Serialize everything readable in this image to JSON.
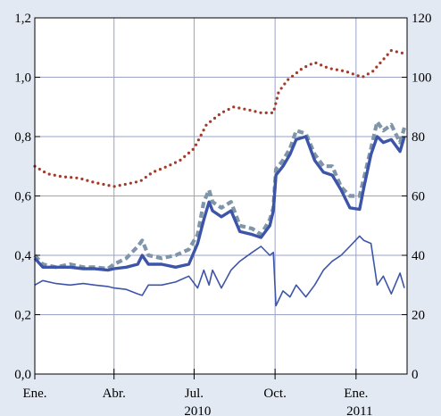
{
  "chart_data": {
    "type": "line",
    "title": "",
    "x_range": [
      "2010-01-01",
      "2011-02-28"
    ],
    "x_ticks": [
      {
        "date": "2010-01-01",
        "label": "Ene.",
        "year": ""
      },
      {
        "date": "2010-04-01",
        "label": "Abr.",
        "year": ""
      },
      {
        "date": "2010-07-01",
        "label": "Jul.",
        "year": "2010"
      },
      {
        "date": "2010-10-01",
        "label": "Oct.",
        "year": ""
      },
      {
        "date": "2011-01-01",
        "label": "Ene.",
        "year": "2011"
      }
    ],
    "y_left": {
      "range": [
        0,
        1.2
      ],
      "ticks": [
        0,
        0.2,
        0.4,
        0.6,
        0.8,
        1.0,
        1.2
      ],
      "tick_labels": [
        "0,0",
        "0,2",
        "0,4",
        "0,6",
        "0,8",
        "1,0",
        "1,2"
      ]
    },
    "y_right": {
      "range": [
        0,
        120
      ],
      "ticks": [
        0,
        20,
        40,
        60,
        80,
        100,
        120
      ],
      "tick_labels": [
        "0",
        "20",
        "40",
        "60",
        "80",
        "100",
        "120"
      ]
    },
    "grid": true,
    "legend": "none",
    "series": [
      {
        "axis": "right",
        "style": "dotted",
        "color": "#a33a2a",
        "points": [
          [
            "2010-01-01",
            70
          ],
          [
            "2010-01-15",
            67.5
          ],
          [
            "2010-02-01",
            66.5
          ],
          [
            "2010-02-20",
            66
          ],
          [
            "2010-03-10",
            64.5
          ],
          [
            "2010-04-01",
            63.2
          ],
          [
            "2010-04-15",
            64
          ],
          [
            "2010-05-01",
            65
          ],
          [
            "2010-05-15",
            68
          ],
          [
            "2010-06-01",
            70
          ],
          [
            "2010-06-15",
            72
          ],
          [
            "2010-07-01",
            76
          ],
          [
            "2010-07-15",
            84
          ],
          [
            "2010-08-01",
            88
          ],
          [
            "2010-08-15",
            90
          ],
          [
            "2010-09-01",
            89
          ],
          [
            "2010-09-15",
            88
          ],
          [
            "2010-09-29",
            88
          ],
          [
            "2010-10-05",
            95
          ],
          [
            "2010-10-15",
            99
          ],
          [
            "2010-11-01",
            103
          ],
          [
            "2010-11-15",
            105
          ],
          [
            "2010-12-01",
            103
          ],
          [
            "2010-12-20",
            102
          ],
          [
            "2011-01-08",
            100
          ],
          [
            "2011-01-20",
            102
          ],
          [
            "2011-02-01",
            106
          ],
          [
            "2011-02-10",
            109
          ],
          [
            "2011-02-25",
            108
          ]
        ]
      },
      {
        "axis": "left",
        "style": "dashed",
        "color": "#7f95a8",
        "points": [
          [
            "2010-01-01",
            0.4
          ],
          [
            "2010-01-10",
            0.37
          ],
          [
            "2010-01-25",
            0.36
          ],
          [
            "2010-02-10",
            0.37
          ],
          [
            "2010-02-25",
            0.36
          ],
          [
            "2010-03-10",
            0.36
          ],
          [
            "2010-03-25",
            0.355
          ],
          [
            "2010-04-01",
            0.37
          ],
          [
            "2010-04-15",
            0.39
          ],
          [
            "2010-04-28",
            0.43
          ],
          [
            "2010-05-03",
            0.45
          ],
          [
            "2010-05-10",
            0.4
          ],
          [
            "2010-05-25",
            0.39
          ],
          [
            "2010-06-10",
            0.4
          ],
          [
            "2010-06-25",
            0.42
          ],
          [
            "2010-07-05",
            0.47
          ],
          [
            "2010-07-12",
            0.58
          ],
          [
            "2010-07-18",
            0.62
          ],
          [
            "2010-07-22",
            0.58
          ],
          [
            "2010-08-01",
            0.56
          ],
          [
            "2010-08-12",
            0.58
          ],
          [
            "2010-08-22",
            0.5
          ],
          [
            "2010-09-05",
            0.49
          ],
          [
            "2010-09-15",
            0.47
          ],
          [
            "2010-09-25",
            0.52
          ],
          [
            "2010-09-29",
            0.56
          ],
          [
            "2010-10-02",
            0.69
          ],
          [
            "2010-10-10",
            0.72
          ],
          [
            "2010-10-18",
            0.76
          ],
          [
            "2010-10-25",
            0.82
          ],
          [
            "2010-11-05",
            0.81
          ],
          [
            "2010-11-15",
            0.74
          ],
          [
            "2010-11-25",
            0.7
          ],
          [
            "2010-12-05",
            0.7
          ],
          [
            "2010-12-15",
            0.63
          ],
          [
            "2010-12-25",
            0.6
          ],
          [
            "2011-01-05",
            0.6
          ],
          [
            "2011-01-10",
            0.66
          ],
          [
            "2011-01-18",
            0.76
          ],
          [
            "2011-01-25",
            0.85
          ],
          [
            "2011-02-01",
            0.82
          ],
          [
            "2011-02-10",
            0.84
          ],
          [
            "2011-02-20",
            0.78
          ],
          [
            "2011-02-25",
            0.83
          ]
        ]
      },
      {
        "axis": "left",
        "style": "solid-thick",
        "color": "#3d55a8",
        "points": [
          [
            "2010-01-01",
            0.39
          ],
          [
            "2010-01-10",
            0.36
          ],
          [
            "2010-01-25",
            0.36
          ],
          [
            "2010-02-10",
            0.36
          ],
          [
            "2010-02-25",
            0.355
          ],
          [
            "2010-03-10",
            0.355
          ],
          [
            "2010-03-25",
            0.35
          ],
          [
            "2010-04-01",
            0.355
          ],
          [
            "2010-04-15",
            0.36
          ],
          [
            "2010-04-28",
            0.37
          ],
          [
            "2010-05-03",
            0.4
          ],
          [
            "2010-05-10",
            0.37
          ],
          [
            "2010-05-25",
            0.37
          ],
          [
            "2010-06-10",
            0.36
          ],
          [
            "2010-06-25",
            0.37
          ],
          [
            "2010-07-05",
            0.44
          ],
          [
            "2010-07-12",
            0.52
          ],
          [
            "2010-07-18",
            0.58
          ],
          [
            "2010-07-22",
            0.55
          ],
          [
            "2010-08-01",
            0.53
          ],
          [
            "2010-08-12",
            0.55
          ],
          [
            "2010-08-22",
            0.48
          ],
          [
            "2010-09-05",
            0.47
          ],
          [
            "2010-09-15",
            0.46
          ],
          [
            "2010-09-25",
            0.5
          ],
          [
            "2010-09-29",
            0.55
          ],
          [
            "2010-10-02",
            0.67
          ],
          [
            "2010-10-10",
            0.7
          ],
          [
            "2010-10-18",
            0.74
          ],
          [
            "2010-10-25",
            0.79
          ],
          [
            "2010-11-05",
            0.8
          ],
          [
            "2010-11-15",
            0.72
          ],
          [
            "2010-11-25",
            0.68
          ],
          [
            "2010-12-05",
            0.67
          ],
          [
            "2010-12-15",
            0.62
          ],
          [
            "2010-12-25",
            0.56
          ],
          [
            "2011-01-05",
            0.555
          ],
          [
            "2011-01-10",
            0.63
          ],
          [
            "2011-01-18",
            0.74
          ],
          [
            "2011-01-25",
            0.8
          ],
          [
            "2011-02-01",
            0.78
          ],
          [
            "2011-02-10",
            0.79
          ],
          [
            "2011-02-20",
            0.75
          ],
          [
            "2011-02-25",
            0.8
          ]
        ]
      },
      {
        "axis": "left",
        "style": "solid-thin",
        "color": "#3d55a8",
        "points": [
          [
            "2010-01-01",
            0.3
          ],
          [
            "2010-01-10",
            0.315
          ],
          [
            "2010-01-25",
            0.305
          ],
          [
            "2010-02-10",
            0.3
          ],
          [
            "2010-02-25",
            0.305
          ],
          [
            "2010-03-10",
            0.3
          ],
          [
            "2010-03-25",
            0.295
          ],
          [
            "2010-04-01",
            0.29
          ],
          [
            "2010-04-15",
            0.285
          ],
          [
            "2010-04-28",
            0.27
          ],
          [
            "2010-05-03",
            0.265
          ],
          [
            "2010-05-10",
            0.3
          ],
          [
            "2010-05-25",
            0.3
          ],
          [
            "2010-06-10",
            0.31
          ],
          [
            "2010-06-25",
            0.33
          ],
          [
            "2010-07-05",
            0.29
          ],
          [
            "2010-07-12",
            0.35
          ],
          [
            "2010-07-18",
            0.3
          ],
          [
            "2010-07-22",
            0.35
          ],
          [
            "2010-08-01",
            0.29
          ],
          [
            "2010-08-12",
            0.35
          ],
          [
            "2010-08-22",
            0.38
          ],
          [
            "2010-09-05",
            0.41
          ],
          [
            "2010-09-15",
            0.43
          ],
          [
            "2010-09-25",
            0.4
          ],
          [
            "2010-09-29",
            0.41
          ],
          [
            "2010-10-02",
            0.23
          ],
          [
            "2010-10-10",
            0.28
          ],
          [
            "2010-10-18",
            0.26
          ],
          [
            "2010-10-25",
            0.3
          ],
          [
            "2010-11-05",
            0.26
          ],
          [
            "2010-11-15",
            0.3
          ],
          [
            "2010-11-25",
            0.35
          ],
          [
            "2010-12-05",
            0.38
          ],
          [
            "2010-12-15",
            0.4
          ],
          [
            "2010-12-25",
            0.43
          ],
          [
            "2011-01-05",
            0.465
          ],
          [
            "2011-01-10",
            0.45
          ],
          [
            "2011-01-18",
            0.44
          ],
          [
            "2011-01-25",
            0.3
          ],
          [
            "2011-02-01",
            0.33
          ],
          [
            "2011-02-10",
            0.27
          ],
          [
            "2011-02-20",
            0.34
          ],
          [
            "2011-02-25",
            0.29
          ]
        ]
      }
    ]
  }
}
